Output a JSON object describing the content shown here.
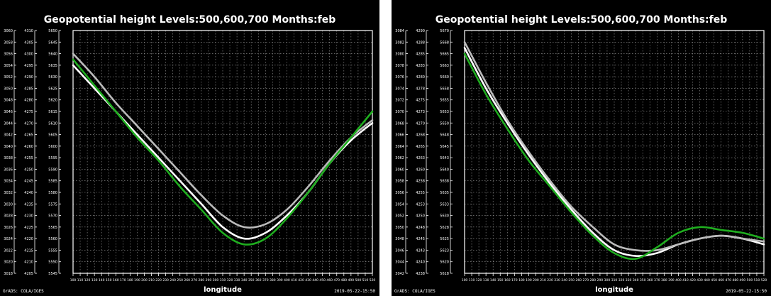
{
  "footer": {
    "left": "GrADS: COLA/IGES",
    "right": "2019-05-22-15:50"
  },
  "chart_data": [
    {
      "type": "line",
      "title": "Geopotential height Levels:500,600,700 Months:feb",
      "xlabel": "longitude",
      "x_ticks": [
        "100",
        "110",
        "120",
        "130",
        "140",
        "150",
        "160",
        "170",
        "180",
        "190",
        "200",
        "210",
        "220",
        "230",
        "240",
        "250",
        "260",
        "270",
        "280",
        "290",
        "300",
        "310",
        "320",
        "330",
        "340",
        "350",
        "360",
        "370",
        "380",
        "390",
        "400",
        "410",
        "420",
        "430",
        "440",
        "450",
        "460",
        "470",
        "480",
        "490",
        "500",
        "510",
        "520"
      ],
      "grid": true,
      "y_axes": [
        {
          "ticks": [
            "3060",
            "3058",
            "3056",
            "3054",
            "3052",
            "3050",
            "3048",
            "3046",
            "3044",
            "3042",
            "3040",
            "3038",
            "3036",
            "3034",
            "3032",
            "3030",
            "3028",
            "3026",
            "3024",
            "3022",
            "3020",
            "3018"
          ]
        },
        {
          "ticks": [
            "4310",
            "4305",
            "4300",
            "4295",
            "4290",
            "4285",
            "4280",
            "4275",
            "4270",
            "4265",
            "4260",
            "4255",
            "4250",
            "4245",
            "4240",
            "4235",
            "4230",
            "4225",
            "4220",
            "4215",
            "4210",
            "4205"
          ]
        },
        {
          "ticks": [
            "5650",
            "5645",
            "5640",
            "5635",
            "5630",
            "5625",
            "5620",
            "5615",
            "5610",
            "5605",
            "5600",
            "5595",
            "5590",
            "5585",
            "5580",
            "5575",
            "5570",
            "5565",
            "5560",
            "5555",
            "5550",
            "5545"
          ]
        }
      ],
      "ylim": [
        3018,
        3060
      ],
      "series": [
        {
          "color": "#ffffff",
          "x": [
            100,
            130,
            160,
            190,
            220,
            250,
            280,
            310,
            340,
            370,
            400,
            430,
            460,
            490,
            520
          ],
          "values": [
            3054,
            3050,
            3046,
            3042,
            3038,
            3034,
            3030,
            3026,
            3024,
            3025,
            3028,
            3032,
            3037,
            3041,
            3044
          ]
        },
        {
          "color": "#bbbbbb",
          "x": [
            100,
            130,
            160,
            190,
            220,
            250,
            280,
            310,
            340,
            370,
            400,
            430,
            460,
            490,
            520
          ],
          "values": [
            3056,
            3052,
            3047.5,
            3043.5,
            3039.5,
            3035.5,
            3031.5,
            3028,
            3026,
            3026.5,
            3029,
            3033,
            3037.5,
            3041.5,
            3044.5
          ]
        },
        {
          "color": "#1fae1f",
          "x": [
            100,
            130,
            160,
            190,
            220,
            250,
            280,
            310,
            340,
            370,
            400,
            430,
            460,
            490,
            520
          ],
          "values": [
            3055,
            3050.5,
            3046,
            3041.5,
            3037.5,
            3033,
            3029,
            3025,
            3023,
            3024,
            3027.5,
            3032,
            3037,
            3041.5,
            3046
          ]
        }
      ]
    },
    {
      "type": "line",
      "title": "Geopotential height Levels:500,600,700 Months:feb",
      "xlabel": "longitude",
      "x_ticks": [
        "100",
        "110",
        "120",
        "130",
        "140",
        "150",
        "160",
        "170",
        "180",
        "190",
        "200",
        "210",
        "220",
        "230",
        "240",
        "250",
        "260",
        "270",
        "280",
        "290",
        "300",
        "310",
        "320",
        "330",
        "340",
        "350",
        "360",
        "370",
        "380",
        "390",
        "400",
        "410",
        "420",
        "430",
        "440",
        "450",
        "460",
        "470",
        "480",
        "490",
        "500",
        "510",
        "520"
      ],
      "grid": true,
      "y_axes": [
        {
          "ticks": [
            "3084",
            "3082",
            "3080",
            "3078",
            "3076",
            "3074",
            "3072",
            "3070",
            "3068",
            "3066",
            "3064",
            "3062",
            "3060",
            "3058",
            "3056",
            "3054",
            "3052",
            "3050",
            "3048",
            "3046",
            "3044",
            "3042"
          ]
        },
        {
          "ticks": [
            "4290",
            "4288",
            "4285",
            "4283",
            "4280",
            "4278",
            "4275",
            "4273",
            "4270",
            "4268",
            "4265",
            "4263",
            "4260",
            "4258",
            "4255",
            "4253",
            "4250",
            "4248",
            "4245",
            "4243",
            "4240",
            "4238"
          ]
        },
        {
          "ticks": [
            "5670",
            "5668",
            "5665",
            "5663",
            "5660",
            "5658",
            "5655",
            "5653",
            "5650",
            "5648",
            "5645",
            "5643",
            "5640",
            "5638",
            "5635",
            "5633",
            "5630",
            "5628",
            "5625",
            "5623",
            "5620",
            "5618"
          ]
        }
      ],
      "ylim": [
        3042,
        3084
      ],
      "series": [
        {
          "color": "#ffffff",
          "x": [
            100,
            130,
            160,
            190,
            220,
            250,
            280,
            310,
            340,
            370,
            400,
            430,
            460,
            490,
            520
          ],
          "values": [
            3081,
            3074,
            3068,
            3062.5,
            3057.5,
            3053,
            3049,
            3046,
            3045,
            3045.5,
            3047,
            3048,
            3048.5,
            3048,
            3047
          ]
        },
        {
          "color": "#bbbbbb",
          "x": [
            100,
            130,
            160,
            190,
            220,
            250,
            280,
            310,
            340,
            370,
            400,
            430,
            460,
            490,
            520
          ],
          "values": [
            3082,
            3075,
            3068.5,
            3063,
            3058,
            3053.5,
            3050,
            3047,
            3046,
            3046,
            3047,
            3048,
            3048.5,
            3048,
            3047.5
          ]
        },
        {
          "color": "#1fae1f",
          "x": [
            100,
            130,
            160,
            190,
            220,
            250,
            280,
            310,
            340,
            370,
            400,
            430,
            460,
            490,
            520
          ],
          "values": [
            3080,
            3073,
            3067,
            3061.5,
            3057,
            3052.5,
            3048.5,
            3045.5,
            3044.5,
            3046.5,
            3049,
            3050,
            3049.5,
            3049,
            3048
          ]
        }
      ]
    }
  ]
}
